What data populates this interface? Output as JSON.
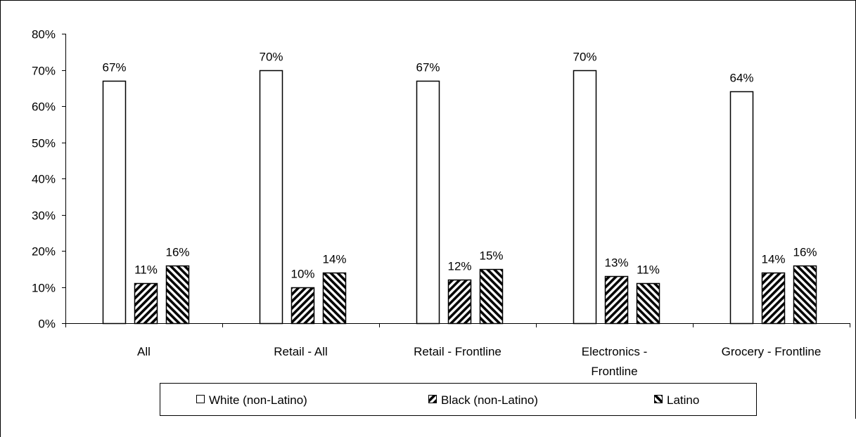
{
  "chart_data": {
    "type": "bar",
    "title": "",
    "xlabel": "",
    "ylabel": "",
    "ylim": [
      0,
      0.8
    ],
    "y_ticks": [
      "0%",
      "10%",
      "20%",
      "30%",
      "40%",
      "50%",
      "60%",
      "70%",
      "80%"
    ],
    "categories": [
      [
        "All"
      ],
      [
        "Retail - All"
      ],
      [
        "Retail - Frontline"
      ],
      [
        "Electronics -",
        "Frontline"
      ],
      [
        "Grocery - Frontline"
      ]
    ],
    "series": [
      {
        "name": "White (non-Latino)",
        "pattern": "solid-white",
        "values": [
          0.67,
          0.7,
          0.67,
          0.7,
          0.64
        ],
        "labels": [
          "67%",
          "70%",
          "67%",
          "70%",
          "64%"
        ]
      },
      {
        "name": "Black (non-Latino)",
        "pattern": "diagonal-forward",
        "values": [
          0.11,
          0.1,
          0.12,
          0.13,
          0.14
        ],
        "labels": [
          "11%",
          "10%",
          "12%",
          "13%",
          "14%"
        ]
      },
      {
        "name": "Latino",
        "pattern": "diagonal-backward",
        "values": [
          0.16,
          0.14,
          0.15,
          0.11,
          0.16
        ],
        "labels": [
          "16%",
          "14%",
          "15%",
          "11%",
          "16%"
        ]
      }
    ],
    "grid": false,
    "legend_position": "bottom"
  }
}
